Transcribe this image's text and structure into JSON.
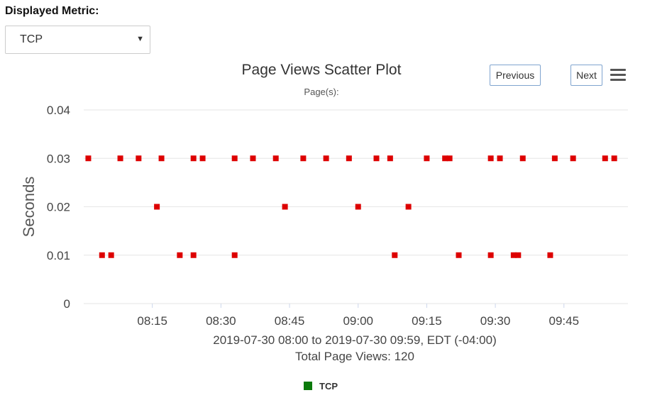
{
  "controls": {
    "metric_label": "Displayed Metric:",
    "metric_value": "TCP",
    "previous_label": "Previous",
    "next_label": "Next",
    "menu_icon": "hamburger-menu-icon"
  },
  "colors": {
    "points": "#dd0000",
    "legend_swatch": "#0b7a0b",
    "grid": "#e6e6e6"
  },
  "chart_data": {
    "type": "scatter",
    "title": "Page Views Scatter Plot",
    "subtitle": "Page(s):",
    "ylabel": "Seconds",
    "ylim": [
      0,
      0.04
    ],
    "yticks": [
      "0",
      "0.01",
      "0.02",
      "0.03",
      "0.04"
    ],
    "xlim": [
      "08:00",
      "09:59"
    ],
    "xticks": [
      "08:15",
      "08:30",
      "08:45",
      "09:00",
      "09:15",
      "09:30",
      "09:45"
    ],
    "footer_range": "2019-07-30 08:00 to 2019-07-30 09:59, EDT (-04:00)",
    "footer_total": "Total Page Views: 120",
    "legend": [
      {
        "name": "TCP",
        "color": "#0b7a0b"
      }
    ],
    "series": [
      {
        "name": "TCP",
        "points": [
          {
            "x": "08:01",
            "y": 0.03
          },
          {
            "x": "08:04",
            "y": 0.01
          },
          {
            "x": "08:06",
            "y": 0.01
          },
          {
            "x": "08:08",
            "y": 0.03
          },
          {
            "x": "08:12",
            "y": 0.03
          },
          {
            "x": "08:16",
            "y": 0.02
          },
          {
            "x": "08:17",
            "y": 0.03
          },
          {
            "x": "08:21",
            "y": 0.01
          },
          {
            "x": "08:24",
            "y": 0.03
          },
          {
            "x": "08:24",
            "y": 0.01
          },
          {
            "x": "08:26",
            "y": 0.03
          },
          {
            "x": "08:33",
            "y": 0.03
          },
          {
            "x": "08:33",
            "y": 0.01
          },
          {
            "x": "08:37",
            "y": 0.03
          },
          {
            "x": "08:42",
            "y": 0.03
          },
          {
            "x": "08:44",
            "y": 0.02
          },
          {
            "x": "08:48",
            "y": 0.03
          },
          {
            "x": "08:53",
            "y": 0.03
          },
          {
            "x": "08:58",
            "y": 0.03
          },
          {
            "x": "09:00",
            "y": 0.02
          },
          {
            "x": "09:04",
            "y": 0.03
          },
          {
            "x": "09:07",
            "y": 0.03
          },
          {
            "x": "09:08",
            "y": 0.01
          },
          {
            "x": "09:11",
            "y": 0.02
          },
          {
            "x": "09:15",
            "y": 0.03
          },
          {
            "x": "09:19",
            "y": 0.03
          },
          {
            "x": "09:20",
            "y": 0.03
          },
          {
            "x": "09:22",
            "y": 0.01
          },
          {
            "x": "09:29",
            "y": 0.03
          },
          {
            "x": "09:29",
            "y": 0.01
          },
          {
            "x": "09:31",
            "y": 0.03
          },
          {
            "x": "09:34",
            "y": 0.01
          },
          {
            "x": "09:35",
            "y": 0.01
          },
          {
            "x": "09:36",
            "y": 0.03
          },
          {
            "x": "09:42",
            "y": 0.01
          },
          {
            "x": "09:43",
            "y": 0.03
          },
          {
            "x": "09:47",
            "y": 0.03
          },
          {
            "x": "09:54",
            "y": 0.03
          },
          {
            "x": "09:56",
            "y": 0.03
          }
        ]
      }
    ]
  }
}
